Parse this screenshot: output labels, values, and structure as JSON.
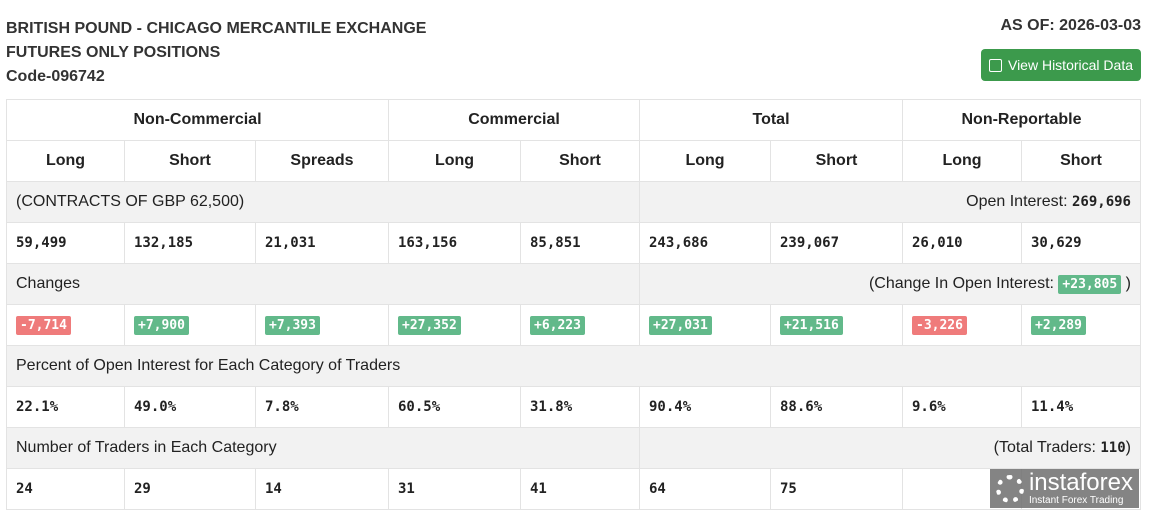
{
  "header": {
    "title1": "BRITISH POUND - CHICAGO MERCANTILE EXCHANGE",
    "title2": "FUTURES ONLY POSITIONS",
    "code": "Code-096742",
    "as_of": "AS OF: 2026-03-03",
    "button": "View Historical Data",
    "button_icon": "calendar-plus-icon"
  },
  "groups": [
    "Non-Commercial",
    "Commercial",
    "Total",
    "Non-Reportable"
  ],
  "cols": [
    "Long",
    "Short",
    "Spreads",
    "Long",
    "Short",
    "Long",
    "Short",
    "Long",
    "Short"
  ],
  "contracts": {
    "label": "(CONTRACTS OF GBP 62,500)",
    "oi_label": "Open Interest:",
    "oi": "269,696"
  },
  "positions": [
    "59,499",
    "132,185",
    "21,031",
    "163,156",
    "85,851",
    "243,686",
    "239,067",
    "26,010",
    "30,629"
  ],
  "changes": {
    "label": "Changes",
    "oi_label": "(Change In Open Interest:",
    "oi": "+23,805",
    "close": ")",
    "values": [
      "-7,714",
      "+7,900",
      "+7,393",
      "+27,352",
      "+6,223",
      "+27,031",
      "+21,516",
      "-3,226",
      "+2,289"
    ]
  },
  "percent": {
    "label": "Percent of Open Interest for Each Category of Traders",
    "values": [
      "22.1%",
      "49.0%",
      "7.8%",
      "60.5%",
      "31.8%",
      "90.4%",
      "88.6%",
      "9.6%",
      "11.4%"
    ]
  },
  "traders": {
    "label": "Number of Traders in Each Category",
    "total_label": "(Total Traders:",
    "total": "110",
    "close": ")",
    "values": [
      "24",
      "29",
      "14",
      "31",
      "41",
      "64",
      "75",
      "",
      ""
    ]
  },
  "colors": {
    "positive": "#62b98a",
    "negative": "#ef7b7b",
    "button": "#3c9a4c"
  },
  "watermark": {
    "brand": "instaforex",
    "tagline": "Instant Forex Trading"
  }
}
